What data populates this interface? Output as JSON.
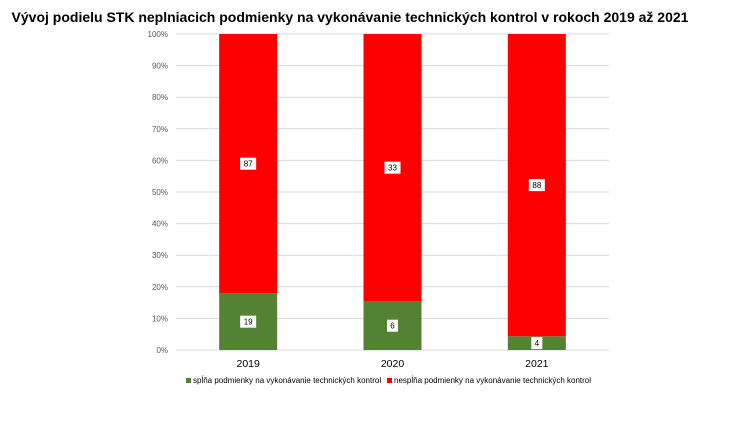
{
  "chart_data": {
    "type": "bar",
    "stacked": "percent",
    "title": "Vývoj podielu STK neplniacich podmienky na vykonávanie technických kontrol v rokoch 2019  až 2021",
    "xlabel": "",
    "ylabel": "",
    "categories": [
      "2019",
      "2020",
      "2021"
    ],
    "series": [
      {
        "name": "spĺňa podmienky na vykonávanie technických kontrol",
        "values": [
          19,
          6,
          4
        ],
        "color": "#548235"
      },
      {
        "name": "nespĺňa podmienky na vykonávanie technických kontrol",
        "values": [
          87,
          33,
          88
        ],
        "color": "#ff0000"
      }
    ],
    "ylim": [
      0,
      100
    ],
    "yticks": [
      "0%",
      "10%",
      "20%",
      "30%",
      "40%",
      "50%",
      "60%",
      "70%",
      "80%",
      "90%",
      "100%"
    ],
    "grid": true,
    "legend": "bottom"
  }
}
